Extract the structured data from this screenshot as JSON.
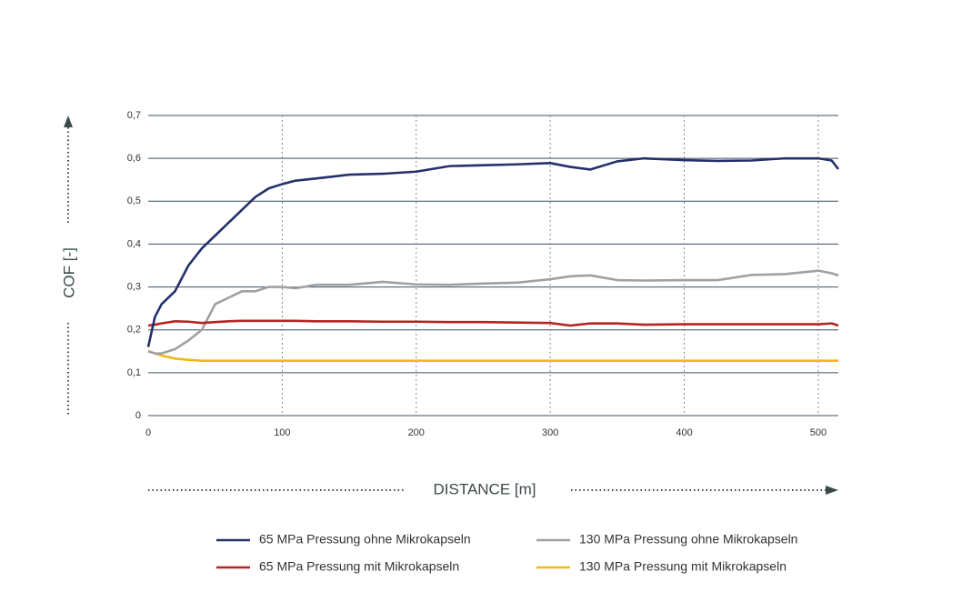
{
  "chart_data": {
    "type": "line",
    "x_label": "DISTANCE [m]",
    "y_label": "COF [-]",
    "x": [
      0,
      5,
      10,
      20,
      30,
      40,
      50,
      60,
      70,
      80,
      90,
      100,
      110,
      125,
      150,
      175,
      200,
      225,
      250,
      275,
      300,
      315,
      330,
      350,
      370,
      400,
      425,
      450,
      475,
      500,
      510,
      515
    ],
    "xlim": [
      0,
      515
    ],
    "xticks": [
      0,
      100,
      200,
      300,
      400,
      500
    ],
    "ylim": [
      0,
      0.7
    ],
    "yticks": [
      0,
      {
        "value": 0.1,
        "label": "0,1"
      },
      {
        "value": 0.2,
        "label": "0,2"
      },
      {
        "value": 0.3,
        "label": "0,3"
      },
      {
        "value": 0.4,
        "label": "0,4"
      },
      {
        "value": 0.5,
        "label": "0,5"
      },
      {
        "value": 0.6,
        "label": "0,6"
      },
      {
        "value": 0.7,
        "label": "0,7"
      }
    ],
    "grid": true,
    "series": [
      {
        "name": "65 MPa Pressung ohne Mikrokapseln",
        "color": "#25306b",
        "values": [
          0.16,
          0.23,
          0.26,
          0.29,
          0.35,
          0.39,
          0.42,
          0.45,
          0.48,
          0.51,
          0.53,
          0.54,
          0.548,
          0.553,
          0.562,
          0.564,
          0.569,
          0.582,
          0.584,
          0.586,
          0.589,
          0.58,
          0.574,
          0.593,
          0.6,
          0.596,
          0.594,
          0.595,
          0.6,
          0.6,
          0.595,
          0.575
        ]
      },
      {
        "name": "130 MPa Pressung ohne Mikrokapseln",
        "color": "#a0a0a0",
        "values": [
          0.15,
          0.145,
          0.145,
          0.155,
          0.175,
          0.2,
          0.26,
          0.275,
          0.29,
          0.29,
          0.3,
          0.3,
          0.297,
          0.305,
          0.305,
          0.312,
          0.306,
          0.305,
          0.308,
          0.31,
          0.318,
          0.325,
          0.327,
          0.316,
          0.315,
          0.316,
          0.316,
          0.328,
          0.33,
          0.338,
          0.332,
          0.327
        ]
      },
      {
        "name": "65 MPa Pressung mit Mikrokapseln",
        "color": "#b52424",
        "values": [
          0.21,
          0.212,
          0.215,
          0.22,
          0.219,
          0.216,
          0.218,
          0.22,
          0.221,
          0.221,
          0.221,
          0.221,
          0.221,
          0.22,
          0.22,
          0.219,
          0.219,
          0.218,
          0.218,
          0.217,
          0.216,
          0.21,
          0.215,
          0.215,
          0.212,
          0.213,
          0.213,
          0.213,
          0.213,
          0.213,
          0.215,
          0.21
        ]
      },
      {
        "name": "130 MPa Pressung mit Mikrokapseln",
        "color": "#f2b90f",
        "values": [
          0.15,
          0.145,
          0.14,
          0.133,
          0.13,
          0.128,
          0.128,
          0.128,
          0.128,
          0.128,
          0.128,
          0.128,
          0.128,
          0.128,
          0.128,
          0.128,
          0.128,
          0.128,
          0.128,
          0.128,
          0.128,
          0.128,
          0.128,
          0.128,
          0.128,
          0.128,
          0.128,
          0.128,
          0.128,
          0.128,
          0.128,
          0.128
        ]
      }
    ]
  }
}
